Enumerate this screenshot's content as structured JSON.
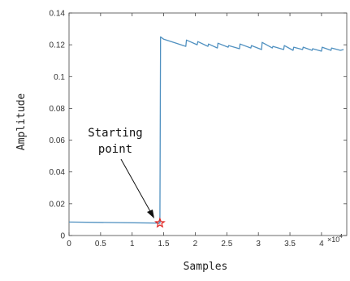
{
  "chart_data": {
    "type": "line",
    "xlabel": "Samples",
    "ylabel": "Amplitude",
    "x_tick_labels": [
      "0",
      "0.5",
      "1",
      "1.5",
      "2",
      "2.5",
      "3",
      "3.5",
      "4"
    ],
    "x_tick_values": [
      0,
      5000,
      10000,
      15000,
      20000,
      25000,
      30000,
      35000,
      40000
    ],
    "x_multiplier_label": "×10",
    "x_multiplier_exponent": "4",
    "y_tick_labels": [
      "0",
      "0.02",
      "0.04",
      "0.06",
      "0.08",
      "0.1",
      "0.12",
      "0.14"
    ],
    "y_tick_values": [
      0,
      0.02,
      0.04,
      0.06,
      0.08,
      0.1,
      0.12,
      0.14
    ],
    "xlim": [
      0,
      44000
    ],
    "ylim": [
      0,
      0.14
    ],
    "grid": false,
    "series": [
      {
        "color": "#4f90c0",
        "x": [
          0,
          14000,
          14400,
          14500,
          15000,
          17000,
          18500,
          18600,
          20300,
          20400,
          22000,
          22100,
          23500,
          23600,
          25200,
          25300,
          27000,
          27100,
          28800,
          28900,
          30500,
          30600,
          32200,
          32300,
          34000,
          34100,
          35500,
          35600,
          37000,
          37100,
          38500,
          38600,
          40000,
          40100,
          41500,
          41600,
          43000,
          43500
        ],
        "y": [
          0.0085,
          0.0078,
          0.0078,
          0.125,
          0.1235,
          0.121,
          0.119,
          0.123,
          0.12,
          0.122,
          0.119,
          0.1205,
          0.118,
          0.121,
          0.1185,
          0.1195,
          0.1175,
          0.1205,
          0.118,
          0.1195,
          0.117,
          0.1215,
          0.118,
          0.119,
          0.117,
          0.1195,
          0.1165,
          0.1185,
          0.117,
          0.1185,
          0.1165,
          0.1175,
          0.116,
          0.1185,
          0.1165,
          0.118,
          0.1165,
          0.117
        ]
      }
    ],
    "marker": {
      "x": 14400,
      "y": 0.0078,
      "color": "#e0201c",
      "shape": "star"
    },
    "annotation": {
      "lines": [
        "Starting",
        "point"
      ]
    }
  }
}
